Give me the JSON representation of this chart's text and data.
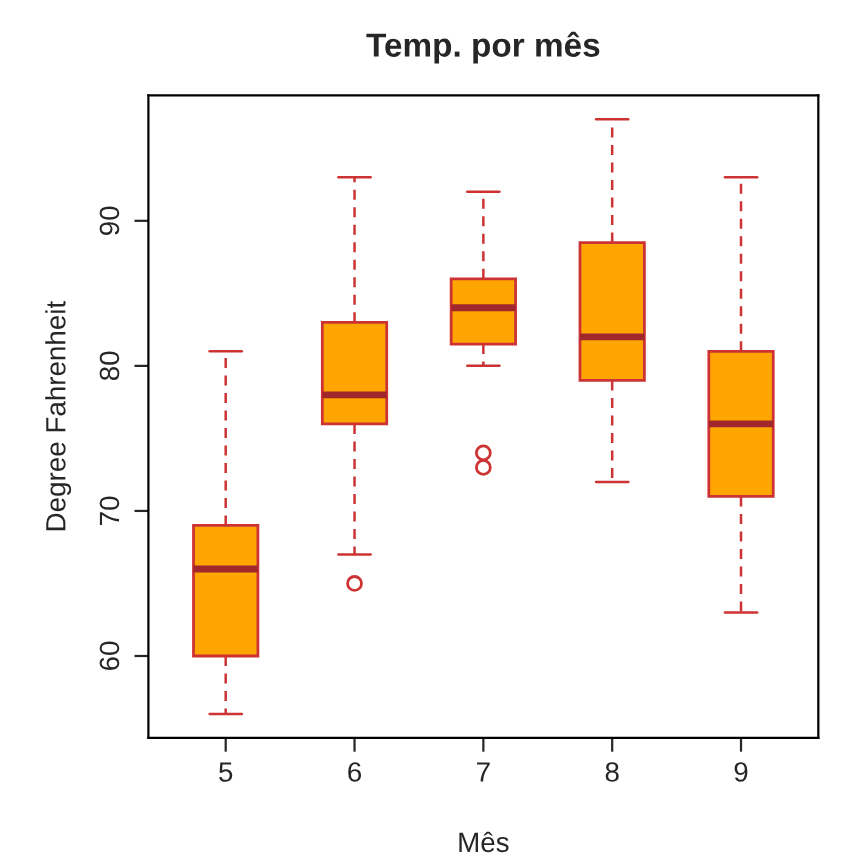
{
  "chart_data": {
    "type": "box",
    "title": "Temp. por mês",
    "xlabel": "Mês",
    "ylabel": "Degree Fahrenheit",
    "categories": [
      "5",
      "6",
      "7",
      "8",
      "9"
    ],
    "series": [
      {
        "color": "#ffa500",
        "boxes": [
          {
            "low": 56,
            "q1": 60,
            "median": 66,
            "q3": 69,
            "high": 81
          },
          {
            "low": 67,
            "q1": 76,
            "median": 78,
            "q3": 83,
            "high": 93,
            "outliers": [
              65
            ]
          },
          {
            "low": 80,
            "q1": 81.5,
            "median": 84,
            "q3": 86,
            "high": 92,
            "outliers": [
              73,
              74
            ]
          },
          {
            "low": 72,
            "q1": 79,
            "median": 82,
            "q3": 88.5,
            "high": 97
          },
          {
            "low": 63,
            "q1": 71,
            "median": 76,
            "q3": 81,
            "high": 93
          }
        ]
      }
    ],
    "ylim": [
      54.36,
      98.64
    ],
    "yticks": [
      60,
      70,
      80,
      90
    ],
    "grid": false
  }
}
